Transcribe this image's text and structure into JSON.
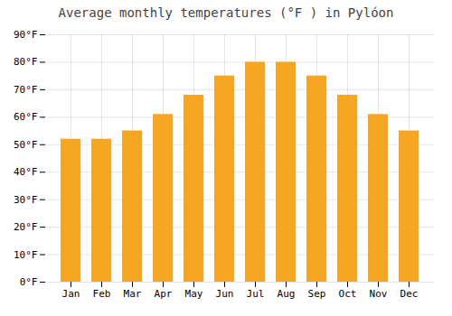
{
  "chart_data": {
    "type": "bar",
    "title": "Average monthly temperatures (°F ) in Pylóon",
    "categories": [
      "Jan",
      "Feb",
      "Mar",
      "Apr",
      "May",
      "Jun",
      "Jul",
      "Aug",
      "Sep",
      "Oct",
      "Nov",
      "Dec"
    ],
    "values": [
      52,
      52,
      55,
      61,
      68,
      75,
      80,
      80,
      75,
      68,
      61,
      55
    ],
    "color": "#F5A623",
    "ylim": [
      0,
      90
    ],
    "yticks": [
      {
        "value": 0,
        "label": "0°F"
      },
      {
        "value": 10,
        "label": "10°F"
      },
      {
        "value": 20,
        "label": "20°F"
      },
      {
        "value": 30,
        "label": "30°F"
      },
      {
        "value": 40,
        "label": "40°F"
      },
      {
        "value": 50,
        "label": "50°F"
      },
      {
        "value": 60,
        "label": "60°F"
      },
      {
        "value": 70,
        "label": "70°F"
      },
      {
        "value": 80,
        "label": "80°F"
      },
      {
        "value": 90,
        "label": "90°F"
      }
    ],
    "grid": true
  }
}
